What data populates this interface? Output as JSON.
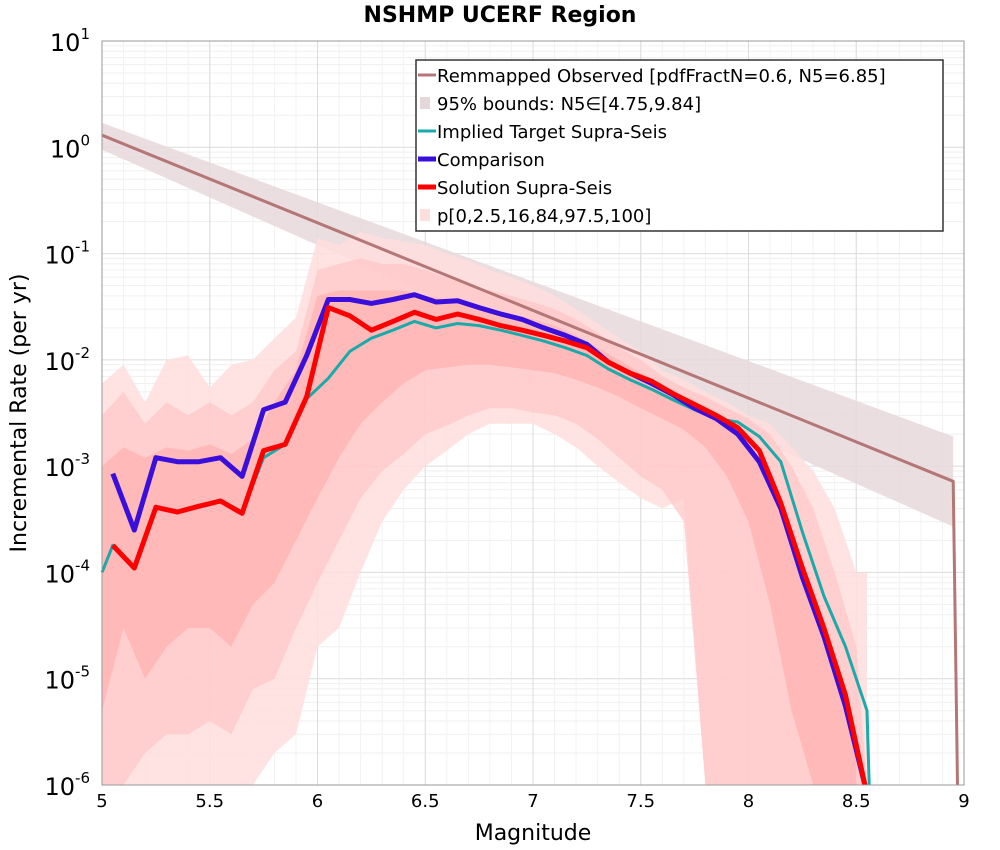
{
  "chart_data": {
    "type": "line",
    "title": "NSHMP UCERF Region",
    "xlabel": "Magnitude",
    "ylabel": "Incremental Rate (per yr)",
    "xlim": [
      5,
      9
    ],
    "ylim_log10": [
      -6,
      1
    ],
    "y_scale": "log",
    "grid": true,
    "legend_placement": "top-right",
    "x_ticks": [
      "5",
      "5.5",
      "6",
      "6.5",
      "7",
      "7.5",
      "8",
      "8.5",
      "9"
    ],
    "y_ticks": [
      {
        "base": "10",
        "exp": "1"
      },
      {
        "base": "10",
        "exp": "0"
      },
      {
        "base": "10",
        "exp": "-1"
      },
      {
        "base": "10",
        "exp": "-2"
      },
      {
        "base": "10",
        "exp": "-3"
      },
      {
        "base": "10",
        "exp": "-4"
      },
      {
        "base": "10",
        "exp": "-5"
      },
      {
        "base": "10",
        "exp": "-6"
      }
    ],
    "colors": {
      "observed": "#b57676",
      "bounds": "#e6d8da",
      "target": "#1aaaaa",
      "comparison": "#3a0fdc",
      "solution": "#ff0000",
      "percentile_outer": "#ffdede",
      "percentile_mid": "#ffc4c4",
      "percentile_inner": "#ffacac"
    },
    "legend": [
      {
        "label": "Remmapped Observed [pdfFractN=0.6, N5=6.85]",
        "key": "observed",
        "kind": "line"
      },
      {
        "label": "95% bounds: N5∈[4.75,9.84]",
        "key": "bounds",
        "kind": "box"
      },
      {
        "label": "Implied Target Supra-Seis",
        "key": "target",
        "kind": "line"
      },
      {
        "label": "Comparison",
        "key": "comparison",
        "kind": "thick"
      },
      {
        "label": "Solution Supra-Seis",
        "key": "solution",
        "kind": "thick"
      },
      {
        "label": "p[0,2.5,16,84,97.5,100]",
        "key": "percentile_outer",
        "kind": "box"
      }
    ],
    "series": {
      "observed": {
        "x": [
          5,
          8.95,
          8.97
        ],
        "y": [
          1.3,
          0.00072,
          1e-06
        ]
      },
      "bounds": {
        "x": [
          5,
          8.95
        ],
        "upper": [
          1.7,
          0.0019
        ],
        "lower": [
          0.95,
          0.00027
        ]
      },
      "target": {
        "x": [
          5.0,
          5.05,
          5.15,
          5.25,
          5.35,
          5.45,
          5.55,
          5.65,
          5.75,
          5.85,
          5.95,
          6.05,
          6.15,
          6.25,
          6.35,
          6.45,
          6.55,
          6.65,
          6.75,
          6.85,
          6.95,
          7.05,
          7.15,
          7.25,
          7.35,
          7.45,
          7.55,
          7.65,
          7.75,
          7.85,
          7.95,
          8.05,
          8.15,
          8.25,
          8.35,
          8.45,
          8.55,
          8.56
        ],
        "y": [
          0.0001,
          0.00018,
          0.00011,
          0.00042,
          0.00037,
          0.00042,
          0.00048,
          0.00037,
          0.0012,
          0.0016,
          0.0043,
          0.0067,
          0.012,
          0.016,
          0.019,
          0.023,
          0.02,
          0.022,
          0.021,
          0.019,
          0.017,
          0.015,
          0.013,
          0.011,
          0.0082,
          0.0065,
          0.0053,
          0.0042,
          0.0034,
          0.0028,
          0.0026,
          0.0019,
          0.0011,
          0.00024,
          6e-05,
          2e-05,
          5e-06,
          1e-06
        ]
      },
      "comparison": {
        "x": [
          5.05,
          5.15,
          5.25,
          5.35,
          5.45,
          5.55,
          5.65,
          5.75,
          5.85,
          5.95,
          6.05,
          6.15,
          6.25,
          6.35,
          6.45,
          6.55,
          6.65,
          6.75,
          6.85,
          6.95,
          7.05,
          7.15,
          7.25,
          7.35,
          7.45,
          7.55,
          7.65,
          7.75,
          7.85,
          7.95,
          8.05,
          8.15,
          8.25,
          8.35,
          8.45,
          8.54
        ],
        "y": [
          0.00085,
          0.00025,
          0.0012,
          0.0011,
          0.0011,
          0.0012,
          0.0008,
          0.0034,
          0.004,
          0.011,
          0.037,
          0.037,
          0.034,
          0.037,
          0.041,
          0.035,
          0.036,
          0.031,
          0.027,
          0.024,
          0.02,
          0.017,
          0.014,
          0.0095,
          0.0075,
          0.006,
          0.0047,
          0.0035,
          0.0028,
          0.002,
          0.0011,
          0.0004,
          9e-05,
          2.5e-05,
          5.5e-06,
          1e-06
        ]
      },
      "solution": {
        "x": [
          5.05,
          5.15,
          5.25,
          5.35,
          5.45,
          5.55,
          5.65,
          5.75,
          5.85,
          5.95,
          6.05,
          6.15,
          6.25,
          6.35,
          6.45,
          6.55,
          6.65,
          6.75,
          6.85,
          6.95,
          7.05,
          7.15,
          7.25,
          7.35,
          7.45,
          7.55,
          7.65,
          7.75,
          7.85,
          7.95,
          8.05,
          8.15,
          8.25,
          8.35,
          8.45,
          8.54
        ],
        "y": [
          0.00018,
          0.00011,
          0.00041,
          0.00037,
          0.00042,
          0.00047,
          0.00036,
          0.0014,
          0.0016,
          0.0045,
          0.031,
          0.026,
          0.019,
          0.023,
          0.028,
          0.024,
          0.027,
          0.024,
          0.021,
          0.019,
          0.017,
          0.015,
          0.013,
          0.0095,
          0.0075,
          0.0063,
          0.0048,
          0.0038,
          0.003,
          0.0023,
          0.0014,
          0.00045,
          0.00011,
          3e-05,
          7e-06,
          1e-06
        ]
      },
      "p_outer": {
        "x": [
          5.0,
          5.1,
          5.2,
          5.3,
          5.4,
          5.5,
          5.6,
          5.7,
          5.8,
          5.9,
          6.0,
          6.1,
          6.2,
          6.3,
          6.4,
          6.5,
          6.6,
          6.7,
          6.8,
          6.9,
          7.0,
          7.1,
          7.2,
          7.3,
          7.4,
          7.5,
          7.6,
          7.7,
          7.8,
          7.9,
          8.0,
          8.1,
          8.2,
          8.3,
          8.4,
          8.5,
          8.55
        ],
        "upper": [
          0.006,
          0.009,
          0.004,
          0.01,
          0.011,
          0.0055,
          0.009,
          0.01,
          0.016,
          0.025,
          0.14,
          0.12,
          0.16,
          0.14,
          0.13,
          0.12,
          0.1,
          0.085,
          0.07,
          0.06,
          0.05,
          0.04,
          0.03,
          0.022,
          0.016,
          0.012,
          0.008,
          0.0065,
          0.005,
          0.004,
          0.003,
          0.0025,
          0.0015,
          0.0009,
          0.0004,
          0.0001,
          0.0001
        ],
        "lower": [
          1e-06,
          1e-06,
          1e-06,
          1e-06,
          1e-06,
          1e-06,
          1e-06,
          1e-06,
          2e-06,
          3e-06,
          2e-05,
          3e-05,
          0.0001,
          0.0003,
          0.0006,
          0.001,
          0.0014,
          0.002,
          0.0025,
          0.0025,
          0.0025,
          0.002,
          0.0015,
          0.001,
          0.0007,
          0.0005,
          0.0004,
          0.0005,
          1e-06,
          1e-06,
          1e-06,
          1e-06,
          1e-06,
          1e-06,
          1e-06,
          1e-06,
          1e-06
        ]
      },
      "p_mid": {
        "x": [
          5.0,
          5.1,
          5.2,
          5.3,
          5.4,
          5.5,
          5.6,
          5.7,
          5.8,
          5.9,
          6.0,
          6.1,
          6.2,
          6.3,
          6.4,
          6.5,
          6.6,
          6.7,
          6.8,
          6.9,
          7.0,
          7.1,
          7.2,
          7.3,
          7.4,
          7.5,
          7.6,
          7.7,
          7.8,
          7.9,
          8.0,
          8.1,
          8.2,
          8.3,
          8.4,
          8.5,
          8.55
        ],
        "upper": [
          0.003,
          0.005,
          0.0025,
          0.004,
          0.003,
          0.004,
          0.003,
          0.004,
          0.008,
          0.012,
          0.07,
          0.08,
          0.09,
          0.08,
          0.08,
          0.07,
          0.06,
          0.05,
          0.045,
          0.04,
          0.035,
          0.03,
          0.024,
          0.018,
          0.013,
          0.01,
          0.007,
          0.0055,
          0.0045,
          0.0035,
          0.0028,
          0.002,
          0.001,
          0.0004,
          0.0001,
          2e-05,
          1e-06
        ],
        "lower": [
          1e-06,
          1e-06,
          2e-06,
          3e-06,
          3e-06,
          4e-06,
          3e-06,
          8e-06,
          1e-05,
          3e-05,
          8e-05,
          0.0002,
          0.0005,
          0.0009,
          0.0013,
          0.002,
          0.0024,
          0.003,
          0.0035,
          0.0035,
          0.0032,
          0.003,
          0.0025,
          0.0018,
          0.0012,
          0.0008,
          0.0006,
          0.0003,
          1e-06,
          1e-06,
          1e-06,
          1e-06,
          1e-06,
          1e-06,
          1e-06,
          1e-06,
          1e-06
        ]
      },
      "p_inner": {
        "x": [
          5.0,
          5.1,
          5.2,
          5.3,
          5.4,
          5.5,
          5.6,
          5.7,
          5.8,
          5.9,
          6.0,
          6.1,
          6.2,
          6.3,
          6.4,
          6.5,
          6.6,
          6.7,
          6.8,
          6.9,
          7.0,
          7.1,
          7.2,
          7.3,
          7.4,
          7.5,
          7.6,
          7.7,
          7.8,
          7.9,
          8.0,
          8.1,
          8.2,
          8.3,
          8.4,
          8.5
        ],
        "upper": [
          0.001,
          0.0015,
          0.0012,
          0.0015,
          0.0014,
          0.0016,
          0.0013,
          0.0018,
          0.004,
          0.008,
          0.04,
          0.045,
          0.045,
          0.045,
          0.045,
          0.04,
          0.037,
          0.033,
          0.03,
          0.027,
          0.024,
          0.021,
          0.017,
          0.013,
          0.01,
          0.0075,
          0.0058,
          0.0045,
          0.0036,
          0.0028,
          0.0018,
          0.0008,
          0.0002,
          5e-05,
          1.2e-05,
          2e-06
        ],
        "lower": [
          5e-06,
          3e-05,
          1e-05,
          2e-05,
          3e-05,
          3e-05,
          2e-05,
          5e-05,
          8e-05,
          0.0002,
          0.0005,
          0.0012,
          0.0025,
          0.004,
          0.006,
          0.008,
          0.0085,
          0.009,
          0.009,
          0.0085,
          0.008,
          0.0075,
          0.0065,
          0.0055,
          0.0045,
          0.0035,
          0.0028,
          0.0022,
          0.0015,
          0.0008,
          0.0003,
          5e-05,
          5e-06,
          1e-06,
          1e-06,
          1e-06
        ]
      }
    }
  }
}
